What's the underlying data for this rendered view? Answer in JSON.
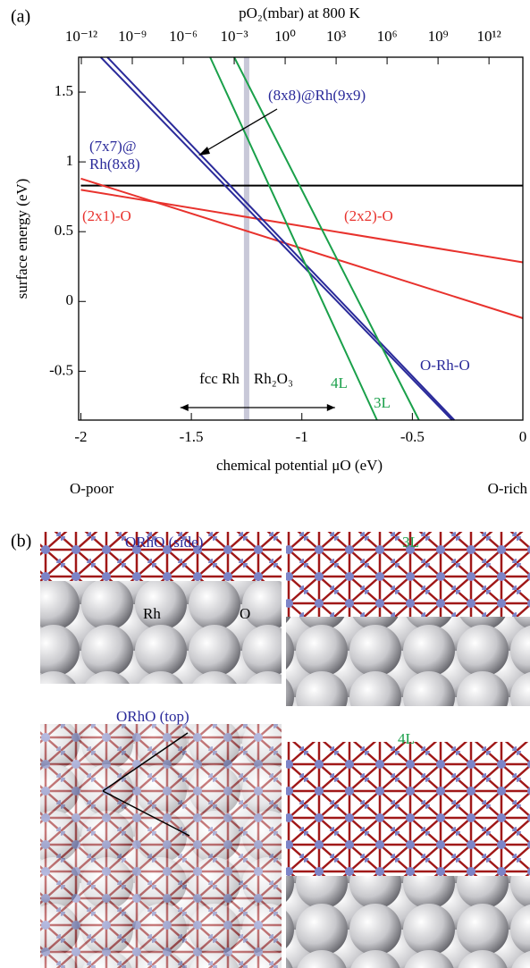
{
  "chart_data": {
    "type": "line",
    "panel_label": "(a)",
    "x_label": "chemical potential μO (eV)",
    "y_label": "surface energy (eV)",
    "x2_label": "pO₂(mbar) at 800 K",
    "xlim": [
      -2.01,
      0
    ],
    "xticks": [
      -2,
      -1.5,
      -1,
      -0.5,
      0
    ],
    "ylim": [
      -0.85,
      1.75
    ],
    "yticks": [
      -0.5,
      0,
      0.5,
      1,
      1.5
    ],
    "x2lim": [
      1e-12,
      10000000000000.0
    ],
    "x2scale": "log",
    "x2ticks": [
      {
        "value": 1e-12,
        "label": "10⁻¹²"
      },
      {
        "value": 1e-09,
        "label": "10⁻⁹"
      },
      {
        "value": 1e-06,
        "label": "10⁻⁶"
      },
      {
        "value": 0.001,
        "label": "10⁻³"
      },
      {
        "value": 1,
        "label": "10⁰"
      },
      {
        "value": 1000.0,
        "label": "10³"
      },
      {
        "value": 1000000.0,
        "label": "10⁶"
      },
      {
        "value": 1000000000.0,
        "label": "10⁹"
      },
      {
        "value": 1000000000000.0,
        "label": "10¹²"
      }
    ],
    "series": [
      {
        "color": "#000000",
        "x": [
          -2,
          0
        ],
        "values": [
          0.83,
          0.83
        ]
      },
      {
        "name": "(2x1)-O",
        "color": "#e8322d",
        "x": [
          -2,
          0
        ],
        "values": [
          0.88,
          -0.12
        ]
      },
      {
        "name": "(2x2)-O",
        "color": "#e8322d",
        "x": [
          -2,
          0
        ],
        "values": [
          0.8,
          0.28
        ]
      },
      {
        "name": "(8x8)@Rh(9x9)",
        "color": "#2a2a9a",
        "x": [
          -1.91,
          -0.32
        ],
        "values": [
          1.75,
          -0.85
        ]
      },
      {
        "name": "(7x7)@ Rh(8x8)",
        "color": "#2a2a9a",
        "x": [
          -1.88,
          -0.31
        ],
        "values": [
          1.75,
          -0.85
        ]
      },
      {
        "name": "4L",
        "color": "#1aa04a",
        "x": [
          -1.415,
          -0.66
        ],
        "values": [
          1.75,
          -0.85
        ]
      },
      {
        "name": "3L",
        "color": "#1aa04a",
        "x": [
          -1.306,
          -0.47
        ],
        "values": [
          1.75,
          -0.85
        ]
      }
    ],
    "phase_boundary": -1.25,
    "phase_arrow_ends": [
      -1.55,
      -0.85
    ],
    "annotations": [
      "O-Rh-O",
      "fcc Rh",
      "Rh₂O₃",
      "O-poor",
      "O-rich"
    ]
  },
  "figure_b": {
    "panel_label": "(b)",
    "panels": [
      "ORhO (side)",
      "3L",
      "ORhO (top)",
      "4L"
    ],
    "atom_labels": [
      "Rh",
      "O"
    ]
  }
}
